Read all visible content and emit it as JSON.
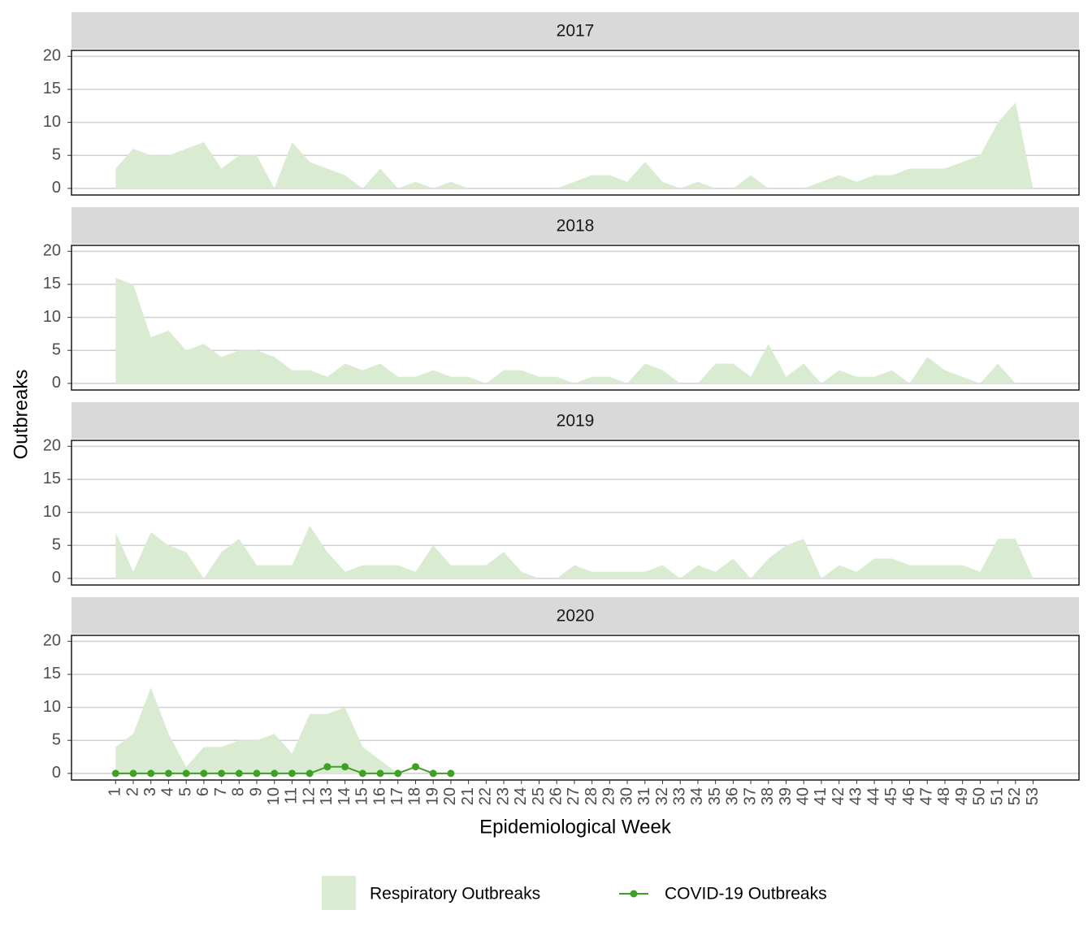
{
  "chart_data": [
    {
      "type": "area",
      "title": "2017",
      "x": [
        1,
        2,
        3,
        4,
        5,
        6,
        7,
        8,
        9,
        10,
        11,
        12,
        13,
        14,
        15,
        16,
        17,
        18,
        19,
        20,
        21,
        22,
        23,
        24,
        25,
        26,
        27,
        28,
        29,
        30,
        31,
        32,
        33,
        34,
        35,
        36,
        37,
        38,
        39,
        40,
        41,
        42,
        43,
        44,
        45,
        46,
        47,
        48,
        49,
        50,
        51,
        52,
        53
      ],
      "series": [
        {
          "name": "Respiratory Outbreaks",
          "color": "#d9ecd2",
          "values": [
            3,
            6,
            5,
            5,
            6,
            7,
            3,
            5,
            5,
            0,
            7,
            4,
            3,
            2,
            0,
            3,
            0,
            1,
            0,
            1,
            0,
            0,
            0,
            0,
            0,
            0,
            1,
            2,
            2,
            1,
            4,
            1,
            0,
            1,
            0,
            0,
            2,
            0,
            0,
            0,
            1,
            2,
            1,
            2,
            2,
            3,
            3,
            3,
            4,
            5,
            10,
            13,
            0
          ]
        }
      ],
      "xlim": [
        -1.5,
        55.6
      ],
      "ylim": [
        -1,
        20.9
      ],
      "yticks": [
        0,
        5,
        10,
        15,
        20
      ],
      "grid": true
    },
    {
      "type": "area",
      "title": "2018",
      "x": [
        1,
        2,
        3,
        4,
        5,
        6,
        7,
        8,
        9,
        10,
        11,
        12,
        13,
        14,
        15,
        16,
        17,
        18,
        19,
        20,
        21,
        22,
        23,
        24,
        25,
        26,
        27,
        28,
        29,
        30,
        31,
        32,
        33,
        34,
        35,
        36,
        37,
        38,
        39,
        40,
        41,
        42,
        43,
        44,
        45,
        46,
        47,
        48,
        49,
        50,
        51,
        52,
        53
      ],
      "series": [
        {
          "name": "Respiratory Outbreaks",
          "color": "#d9ecd2",
          "values": [
            16,
            15,
            7,
            8,
            5,
            6,
            4,
            5,
            5,
            4,
            2,
            2,
            1,
            3,
            2,
            3,
            1,
            1,
            2,
            1,
            1,
            0,
            2,
            2,
            1,
            1,
            0,
            1,
            1,
            0,
            3,
            2,
            0,
            0,
            3,
            3,
            1,
            6,
            1,
            3,
            0,
            2,
            1,
            1,
            2,
            0,
            4,
            2,
            1,
            0,
            3,
            0,
            null
          ]
        }
      ],
      "xlim": [
        -1.5,
        55.6
      ],
      "ylim": [
        -1,
        20.9
      ],
      "yticks": [
        0,
        5,
        10,
        15,
        20
      ],
      "grid": true
    },
    {
      "type": "area",
      "title": "2019",
      "x": [
        1,
        2,
        3,
        4,
        5,
        6,
        7,
        8,
        9,
        10,
        11,
        12,
        13,
        14,
        15,
        16,
        17,
        18,
        19,
        20,
        21,
        22,
        23,
        24,
        25,
        26,
        27,
        28,
        29,
        30,
        31,
        32,
        33,
        34,
        35,
        36,
        37,
        38,
        39,
        40,
        41,
        42,
        43,
        44,
        45,
        46,
        47,
        48,
        49,
        50,
        51,
        52,
        53
      ],
      "series": [
        {
          "name": "Respiratory Outbreaks",
          "color": "#d9ecd2",
          "values": [
            7,
            1,
            7,
            5,
            4,
            0,
            4,
            6,
            2,
            2,
            2,
            8,
            4,
            1,
            2,
            2,
            2,
            1,
            5,
            2,
            2,
            2,
            4,
            1,
            0,
            0,
            2,
            1,
            1,
            1,
            1,
            2,
            0,
            2,
            1,
            3,
            0,
            3,
            5,
            6,
            0,
            2,
            1,
            3,
            3,
            2,
            2,
            2,
            2,
            1,
            6,
            6,
            0
          ]
        }
      ],
      "xlim": [
        -1.5,
        55.6
      ],
      "ylim": [
        -1,
        20.9
      ],
      "yticks": [
        0,
        5,
        10,
        15,
        20
      ],
      "grid": true
    },
    {
      "type": "area",
      "title": "2020",
      "x": [
        1,
        2,
        3,
        4,
        5,
        6,
        7,
        8,
        9,
        10,
        11,
        12,
        13,
        14,
        15,
        16,
        17,
        18,
        19,
        20,
        21,
        22,
        23,
        24,
        25,
        26,
        27,
        28,
        29,
        30,
        31,
        32,
        33,
        34,
        35,
        36,
        37,
        38,
        39,
        40,
        41,
        42,
        43,
        44,
        45,
        46,
        47,
        48,
        49,
        50,
        51,
        52,
        53
      ],
      "series": [
        {
          "name": "Respiratory Outbreaks",
          "color": "#d9ecd2",
          "values": [
            4,
            6,
            13,
            6,
            1,
            4,
            4,
            5,
            5,
            6,
            3,
            9,
            9,
            10,
            4,
            2,
            0,
            null,
            null,
            null,
            null,
            null,
            null,
            null,
            null,
            null,
            null,
            null,
            null,
            null,
            null,
            null,
            null,
            null,
            null,
            null,
            null,
            null,
            null,
            null,
            null,
            null,
            null,
            null,
            null,
            null,
            null,
            null,
            null,
            null,
            null,
            null,
            null
          ]
        },
        {
          "name": "COVID-19 Outbreaks",
          "color": "#3fa026",
          "kind": "line",
          "values": [
            0,
            0,
            0,
            0,
            0,
            0,
            0,
            0,
            0,
            0,
            0,
            0,
            1,
            1,
            0,
            0,
            0,
            1,
            0,
            0,
            null,
            null,
            null,
            null,
            null,
            null,
            null,
            null,
            null,
            null,
            null,
            null,
            null,
            null,
            null,
            null,
            null,
            null,
            null,
            null,
            null,
            null,
            null,
            null,
            null,
            null,
            null,
            null,
            null,
            null,
            null,
            null,
            null
          ]
        }
      ],
      "xlim": [
        -1.5,
        55.6
      ],
      "ylim": [
        -1,
        20.9
      ],
      "yticks": [
        0,
        5,
        10,
        15,
        20
      ],
      "xticks": [
        1,
        2,
        3,
        4,
        5,
        6,
        7,
        8,
        9,
        10,
        11,
        12,
        13,
        14,
        15,
        16,
        17,
        18,
        19,
        20,
        21,
        22,
        23,
        24,
        25,
        26,
        27,
        28,
        29,
        30,
        31,
        32,
        33,
        34,
        35,
        36,
        37,
        38,
        39,
        40,
        41,
        42,
        43,
        44,
        45,
        46,
        47,
        48,
        49,
        50,
        51,
        52,
        53
      ],
      "grid": true,
      "x_label": "Epidemiological Week",
      "y_label": "Outbreaks",
      "legend": "bottom"
    }
  ]
}
